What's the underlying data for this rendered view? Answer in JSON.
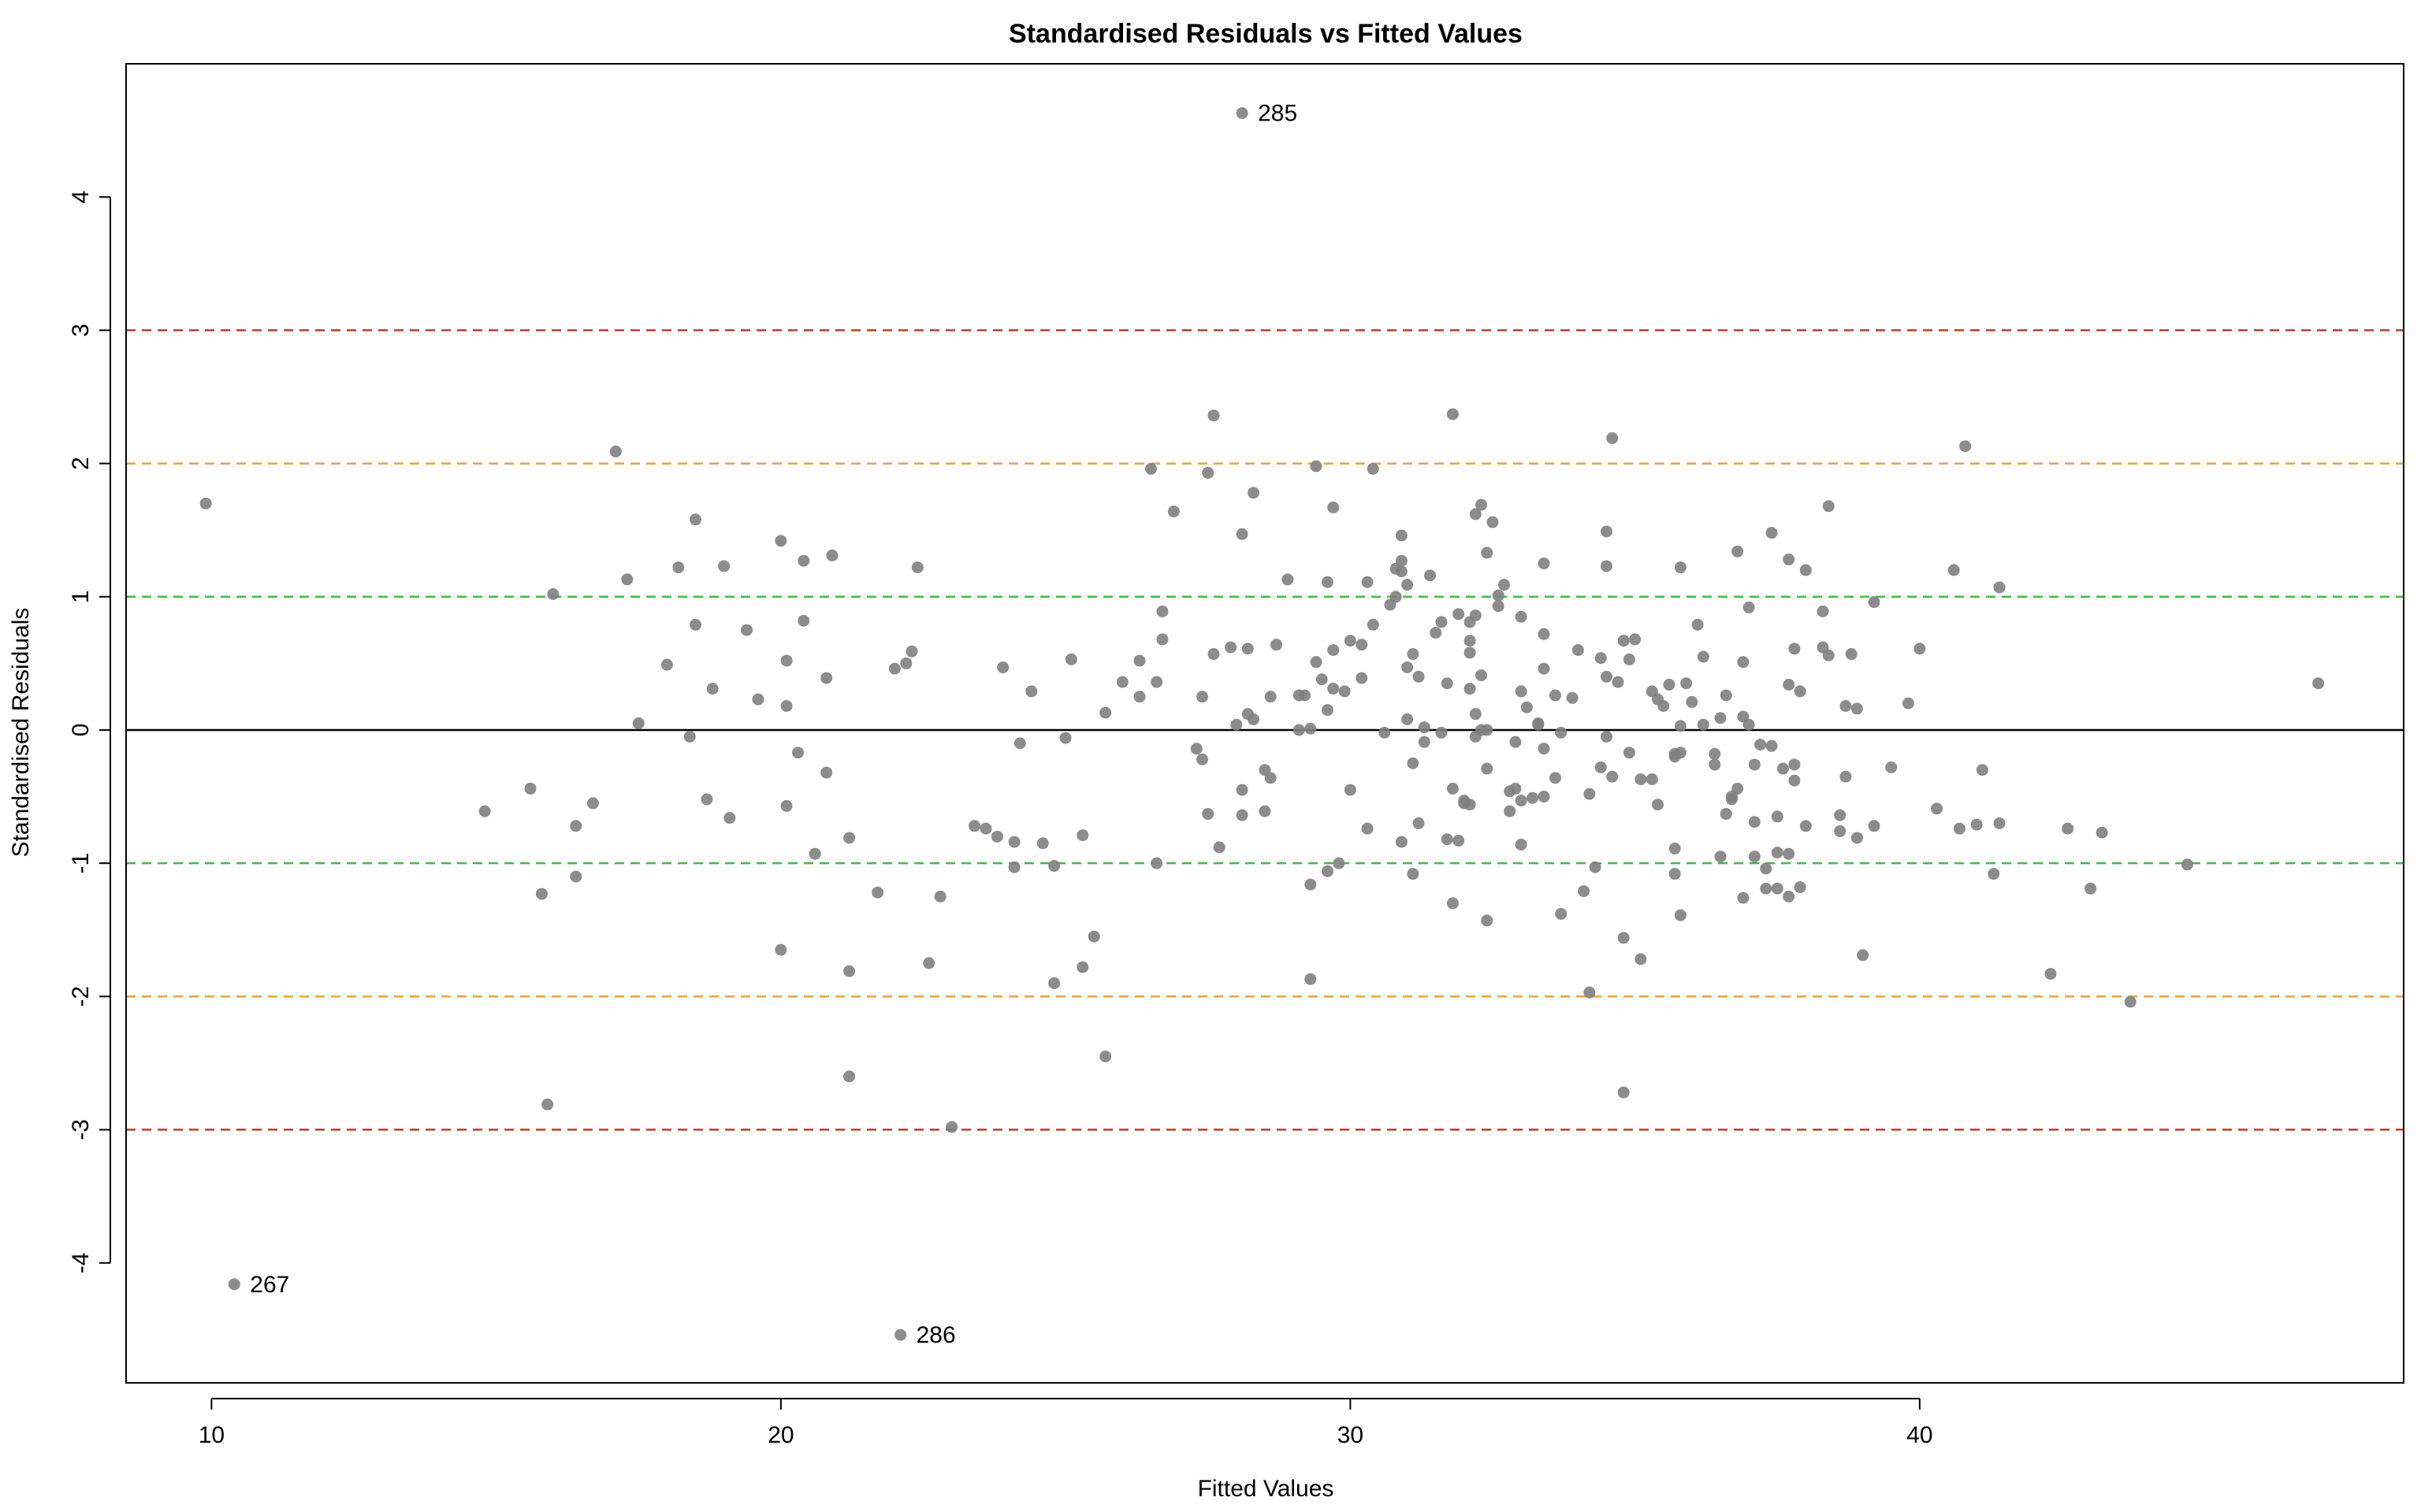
{
  "chart_data": {
    "type": "scatter",
    "title": "Standardised Residuals vs Fitted Values",
    "xlabel": "Fitted Values",
    "ylabel": "Standardised Residuals",
    "xlim": [
      8.5,
      48.5
    ],
    "ylim": [
      -4.9,
      5.0
    ],
    "x_ticks": [
      10,
      20,
      30,
      40
    ],
    "y_ticks": [
      -4,
      -3,
      -2,
      -1,
      0,
      1,
      2,
      3,
      4
    ],
    "x_tick_labels": [
      "10",
      "20",
      "30",
      "40"
    ],
    "y_tick_labels": [
      "-4",
      "-3",
      "-2",
      "-1",
      "0",
      "1",
      "2",
      "3",
      "4"
    ],
    "grid": false,
    "legend": "none",
    "point_color": "#808080",
    "reference_lines": [
      {
        "y": 0,
        "color": "#000000",
        "style": "solid"
      },
      {
        "y": 1,
        "color": "#3bbf3b",
        "style": "dashed"
      },
      {
        "y": -1,
        "color": "#3bbf3b",
        "style": "dashed"
      },
      {
        "y": 2,
        "color": "#e6a23c",
        "style": "dashed"
      },
      {
        "y": -2,
        "color": "#e6a23c",
        "style": "dashed"
      },
      {
        "y": 3,
        "color": "#c0392b",
        "style": "dashed"
      },
      {
        "y": -3,
        "color": "#c0392b",
        "style": "dashed"
      }
    ],
    "labeled_points": [
      {
        "label": "285",
        "x": 28.1,
        "y": 4.63
      },
      {
        "label": "267",
        "x": 10.4,
        "y": -4.16
      },
      {
        "label": "286",
        "x": 22.1,
        "y": -4.54
      }
    ],
    "points": [
      [
        9.9,
        1.7
      ],
      [
        10.4,
        -4.16
      ],
      [
        14.8,
        -0.61
      ],
      [
        15.6,
        -0.44
      ],
      [
        15.8,
        -1.23
      ],
      [
        15.9,
        -2.81
      ],
      [
        16.0,
        1.02
      ],
      [
        16.4,
        -0.72
      ],
      [
        16.4,
        -1.1
      ],
      [
        16.7,
        -0.55
      ],
      [
        17.1,
        2.09
      ],
      [
        17.3,
        1.13
      ],
      [
        17.5,
        0.05
      ],
      [
        18.0,
        0.49
      ],
      [
        18.2,
        1.22
      ],
      [
        18.4,
        -0.05
      ],
      [
        18.5,
        1.58
      ],
      [
        18.5,
        0.79
      ],
      [
        18.7,
        -0.52
      ],
      [
        18.8,
        0.31
      ],
      [
        19.0,
        1.23
      ],
      [
        19.1,
        -0.66
      ],
      [
        19.4,
        0.75
      ],
      [
        19.6,
        0.23
      ],
      [
        20.0,
        1.42
      ],
      [
        20.1,
        0.52
      ],
      [
        20.1,
        0.18
      ],
      [
        20.1,
        -0.57
      ],
      [
        20.0,
        -1.65
      ],
      [
        20.3,
        -0.17
      ],
      [
        20.4,
        1.27
      ],
      [
        20.4,
        0.82
      ],
      [
        20.6,
        -0.93
      ],
      [
        20.8,
        0.39
      ],
      [
        20.8,
        -0.32
      ],
      [
        20.9,
        1.31
      ],
      [
        21.2,
        -0.81
      ],
      [
        21.2,
        -1.81
      ],
      [
        21.2,
        -2.6
      ],
      [
        21.7,
        -1.22
      ],
      [
        22.1,
        -4.54
      ],
      [
        22.0,
        0.46
      ],
      [
        22.2,
        0.5
      ],
      [
        22.3,
        0.59
      ],
      [
        22.4,
        1.22
      ],
      [
        22.6,
        -1.75
      ],
      [
        22.8,
        -1.25
      ],
      [
        23.0,
        -2.98
      ],
      [
        23.4,
        -0.72
      ],
      [
        23.6,
        -0.74
      ],
      [
        23.8,
        -0.8
      ],
      [
        23.9,
        0.47
      ],
      [
        24.1,
        -0.84
      ],
      [
        24.1,
        -1.03
      ],
      [
        24.2,
        -0.1
      ],
      [
        24.4,
        0.29
      ],
      [
        24.6,
        -0.85
      ],
      [
        24.8,
        -1.02
      ],
      [
        24.8,
        -1.9
      ],
      [
        25.0,
        -0.06
      ],
      [
        25.1,
        0.53
      ],
      [
        25.3,
        -1.78
      ],
      [
        25.3,
        -0.79
      ],
      [
        25.5,
        -1.55
      ],
      [
        25.7,
        0.13
      ],
      [
        25.7,
        -2.45
      ],
      [
        26.0,
        0.36
      ],
      [
        26.3,
        0.25
      ],
      [
        26.3,
        0.52
      ],
      [
        26.5,
        1.96
      ],
      [
        26.6,
        0.36
      ],
      [
        26.7,
        0.68
      ],
      [
        26.6,
        -1.0
      ],
      [
        26.7,
        0.89
      ],
      [
        26.9,
        1.64
      ],
      [
        27.3,
        -0.14
      ],
      [
        27.4,
        -0.22
      ],
      [
        27.4,
        0.25
      ],
      [
        27.5,
        -0.63
      ],
      [
        27.5,
        1.93
      ],
      [
        27.6,
        2.36
      ],
      [
        27.6,
        0.57
      ],
      [
        27.7,
        -0.88
      ],
      [
        27.9,
        0.62
      ],
      [
        28.0,
        0.04
      ],
      [
        28.1,
        1.47
      ],
      [
        28.1,
        -0.45
      ],
      [
        28.1,
        -0.64
      ],
      [
        28.2,
        0.61
      ],
      [
        28.2,
        0.12
      ],
      [
        28.3,
        1.78
      ],
      [
        28.3,
        0.08
      ],
      [
        28.1,
        4.63
      ],
      [
        28.5,
        -0.3
      ],
      [
        28.6,
        -0.36
      ],
      [
        28.6,
        0.25
      ],
      [
        28.5,
        -0.61
      ],
      [
        28.7,
        0.64
      ],
      [
        28.9,
        1.13
      ],
      [
        29.1,
        0.26
      ],
      [
        29.1,
        0.0
      ],
      [
        29.2,
        0.26
      ],
      [
        29.3,
        -1.16
      ],
      [
        29.3,
        -1.87
      ],
      [
        29.3,
        0.01
      ],
      [
        29.4,
        1.98
      ],
      [
        29.4,
        0.51
      ],
      [
        29.5,
        0.38
      ],
      [
        29.6,
        0.15
      ],
      [
        29.6,
        1.11
      ],
      [
        29.6,
        -1.06
      ],
      [
        29.7,
        0.6
      ],
      [
        29.7,
        0.31
      ],
      [
        29.7,
        1.67
      ],
      [
        29.8,
        -1.0
      ],
      [
        29.9,
        0.29
      ],
      [
        30.0,
        0.67
      ],
      [
        30.0,
        -0.45
      ],
      [
        30.2,
        0.39
      ],
      [
        30.2,
        0.64
      ],
      [
        30.3,
        1.11
      ],
      [
        30.3,
        -0.74
      ],
      [
        30.4,
        0.79
      ],
      [
        30.4,
        1.96
      ],
      [
        30.6,
        -0.02
      ],
      [
        30.7,
        0.94
      ],
      [
        30.8,
        1.21
      ],
      [
        30.8,
        1.0
      ],
      [
        30.9,
        1.27
      ],
      [
        30.9,
        1.46
      ],
      [
        30.9,
        1.19
      ],
      [
        31.0,
        1.09
      ],
      [
        31.0,
        0.47
      ],
      [
        31.0,
        0.08
      ],
      [
        30.9,
        -0.84
      ],
      [
        31.1,
        -0.25
      ],
      [
        31.1,
        0.57
      ],
      [
        31.1,
        -1.08
      ],
      [
        31.2,
        0.4
      ],
      [
        31.2,
        -0.7
      ],
      [
        31.3,
        0.02
      ],
      [
        31.3,
        -0.09
      ],
      [
        31.4,
        1.16
      ],
      [
        31.5,
        0.73
      ],
      [
        31.6,
        -0.02
      ],
      [
        31.6,
        0.81
      ],
      [
        31.7,
        0.35
      ],
      [
        31.7,
        -0.82
      ],
      [
        31.8,
        -0.44
      ],
      [
        31.8,
        2.37
      ],
      [
        31.8,
        -1.3
      ],
      [
        31.9,
        -0.83
      ],
      [
        31.9,
        0.87
      ],
      [
        32.0,
        -0.53
      ],
      [
        32.0,
        -0.55
      ],
      [
        32.1,
        -0.56
      ],
      [
        32.1,
        0.31
      ],
      [
        32.1,
        0.67
      ],
      [
        32.1,
        0.58
      ],
      [
        32.1,
        0.81
      ],
      [
        32.2,
        -0.05
      ],
      [
        32.2,
        0.86
      ],
      [
        32.2,
        0.12
      ],
      [
        32.2,
        1.62
      ],
      [
        32.3,
        1.69
      ],
      [
        32.3,
        0.41
      ],
      [
        32.3,
        0.0
      ],
      [
        32.4,
        1.33
      ],
      [
        32.4,
        0.0
      ],
      [
        32.4,
        -0.29
      ],
      [
        32.4,
        -1.43
      ],
      [
        32.5,
        1.56
      ],
      [
        32.6,
        0.93
      ],
      [
        32.6,
        1.01
      ],
      [
        32.7,
        1.09
      ],
      [
        32.8,
        -0.46
      ],
      [
        32.8,
        -0.61
      ],
      [
        32.9,
        -0.09
      ],
      [
        32.9,
        -0.44
      ],
      [
        33.0,
        0.85
      ],
      [
        33.0,
        -0.86
      ],
      [
        33.0,
        -0.53
      ],
      [
        33.0,
        0.29
      ],
      [
        33.1,
        0.17
      ],
      [
        33.2,
        -0.51
      ],
      [
        33.3,
        0.04
      ],
      [
        33.3,
        0.05
      ],
      [
        33.4,
        -0.14
      ],
      [
        33.4,
        0.46
      ],
      [
        33.4,
        0.72
      ],
      [
        33.4,
        -0.5
      ],
      [
        33.4,
        1.25
      ],
      [
        33.6,
        0.26
      ],
      [
        33.6,
        -0.36
      ],
      [
        33.7,
        -0.02
      ],
      [
        33.7,
        -1.38
      ],
      [
        33.9,
        0.24
      ],
      [
        34.0,
        0.6
      ],
      [
        34.1,
        -1.21
      ],
      [
        34.2,
        -0.48
      ],
      [
        34.2,
        -1.97
      ],
      [
        34.3,
        -1.03
      ],
      [
        34.4,
        0.54
      ],
      [
        34.4,
        -0.28
      ],
      [
        34.5,
        -0.05
      ],
      [
        34.5,
        0.4
      ],
      [
        34.5,
        1.23
      ],
      [
        34.5,
        1.49
      ],
      [
        34.6,
        2.19
      ],
      [
        34.6,
        -0.35
      ],
      [
        34.7,
        0.36
      ],
      [
        34.8,
        -1.56
      ],
      [
        34.8,
        -2.72
      ],
      [
        34.8,
        0.67
      ],
      [
        34.9,
        0.53
      ],
      [
        34.9,
        -0.17
      ],
      [
        35.0,
        0.68
      ],
      [
        35.1,
        -1.72
      ],
      [
        35.1,
        -0.37
      ],
      [
        35.3,
        -0.37
      ],
      [
        35.3,
        0.29
      ],
      [
        35.4,
        0.23
      ],
      [
        35.4,
        -0.56
      ],
      [
        35.5,
        0.18
      ],
      [
        35.6,
        0.34
      ],
      [
        35.7,
        -0.18
      ],
      [
        35.7,
        -0.2
      ],
      [
        35.7,
        -0.89
      ],
      [
        35.7,
        -1.08
      ],
      [
        35.8,
        1.22
      ],
      [
        35.8,
        0.03
      ],
      [
        35.8,
        -1.39
      ],
      [
        35.8,
        -0.17
      ],
      [
        35.9,
        0.35
      ],
      [
        36.0,
        0.21
      ],
      [
        36.1,
        0.79
      ],
      [
        36.2,
        0.55
      ],
      [
        36.2,
        0.04
      ],
      [
        36.4,
        -0.26
      ],
      [
        36.4,
        -0.18
      ],
      [
        36.5,
        0.09
      ],
      [
        36.5,
        -0.95
      ],
      [
        36.6,
        0.26
      ],
      [
        36.6,
        -0.63
      ],
      [
        36.7,
        -0.52
      ],
      [
        36.7,
        -0.5
      ],
      [
        36.8,
        1.34
      ],
      [
        36.8,
        -0.44
      ],
      [
        36.9,
        0.51
      ],
      [
        36.9,
        -1.26
      ],
      [
        36.9,
        0.1
      ],
      [
        37.0,
        0.92
      ],
      [
        37.0,
        0.04
      ],
      [
        37.1,
        -0.26
      ],
      [
        37.1,
        -0.95
      ],
      [
        37.1,
        -0.69
      ],
      [
        37.2,
        -0.11
      ],
      [
        37.3,
        -1.19
      ],
      [
        37.3,
        -1.04
      ],
      [
        37.4,
        -0.12
      ],
      [
        37.4,
        1.48
      ],
      [
        37.5,
        -0.92
      ],
      [
        37.5,
        -0.65
      ],
      [
        37.5,
        -1.19
      ],
      [
        37.6,
        -0.29
      ],
      [
        37.7,
        -0.93
      ],
      [
        37.7,
        0.34
      ],
      [
        37.7,
        1.28
      ],
      [
        37.7,
        -1.25
      ],
      [
        37.8,
        -0.38
      ],
      [
        37.8,
        -0.26
      ],
      [
        37.8,
        0.61
      ],
      [
        37.9,
        0.29
      ],
      [
        37.9,
        -1.18
      ],
      [
        38.0,
        -0.72
      ],
      [
        38.0,
        1.2
      ],
      [
        38.3,
        0.89
      ],
      [
        38.3,
        0.62
      ],
      [
        38.4,
        0.56
      ],
      [
        38.4,
        1.68
      ],
      [
        38.6,
        -0.64
      ],
      [
        38.6,
        -0.76
      ],
      [
        38.7,
        -0.35
      ],
      [
        38.7,
        0.18
      ],
      [
        38.8,
        0.57
      ],
      [
        38.9,
        -0.81
      ],
      [
        38.9,
        0.16
      ],
      [
        39.0,
        -1.69
      ],
      [
        39.2,
        -0.72
      ],
      [
        39.2,
        0.96
      ],
      [
        39.5,
        -0.28
      ],
      [
        39.8,
        0.2
      ],
      [
        40.0,
        0.61
      ],
      [
        40.3,
        -0.59
      ],
      [
        40.6,
        1.2
      ],
      [
        40.7,
        -0.74
      ],
      [
        40.8,
        2.13
      ],
      [
        41.0,
        -0.71
      ],
      [
        41.1,
        -0.3
      ],
      [
        41.3,
        -1.08
      ],
      [
        41.4,
        -0.7
      ],
      [
        41.4,
        1.07
      ],
      [
        42.3,
        -1.83
      ],
      [
        42.6,
        -0.74
      ],
      [
        43.0,
        -1.19
      ],
      [
        43.2,
        -0.77
      ],
      [
        43.7,
        -2.04
      ],
      [
        44.7,
        -1.01
      ],
      [
        47.0,
        0.35
      ]
    ]
  }
}
